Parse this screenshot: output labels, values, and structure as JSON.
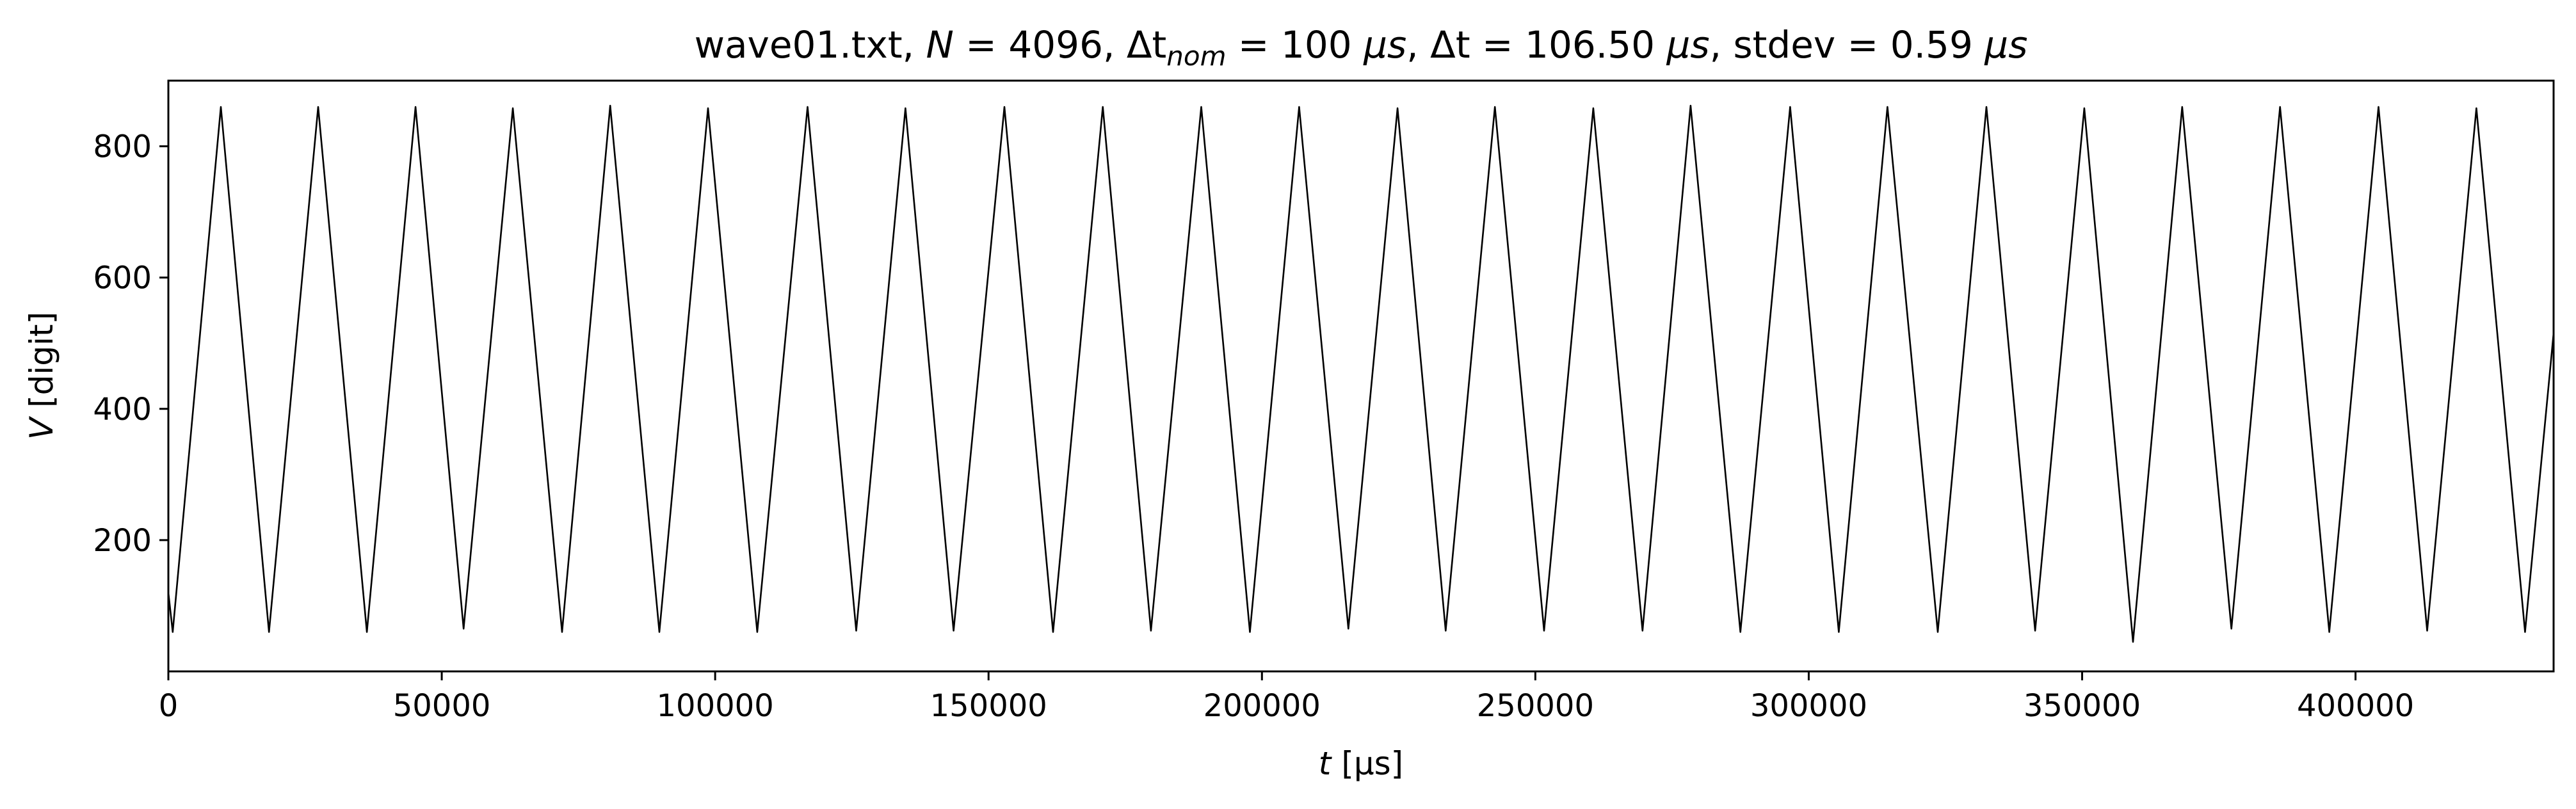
{
  "title": {
    "file": "wave01.txt",
    "N_label": "N",
    "N_value": "4096",
    "dtnom_symbol": "Δt",
    "dtnom_sub": "nom",
    "dtnom_value": "100",
    "dt_symbol": "Δt",
    "dt_value": "106.50",
    "stdev_label": "stdev",
    "stdev_value": "0.59",
    "unit": "μs"
  },
  "colors": {
    "line": "#000000",
    "axes": "#000000",
    "background": "#ffffff"
  },
  "chart_data": {
    "type": "line",
    "title": "wave01.txt, N = 4096, Δt_nom = 100 μs, Δt = 106.50 μs, stdev = 0.59 μs",
    "xlabel_var": "t",
    "xlabel_unit": "[μs]",
    "ylabel_var": "V",
    "ylabel_unit": "[digit]",
    "xlim": [
      0,
      436224
    ],
    "ylim": [
      0,
      900
    ],
    "xticks": [
      0,
      50000,
      100000,
      150000,
      200000,
      250000,
      300000,
      350000,
      400000
    ],
    "xtick_labels": [
      "0",
      "50000",
      "100000",
      "150000",
      "200000",
      "250000",
      "300000",
      "350000",
      "400000"
    ],
    "yticks": [
      200,
      400,
      600,
      800
    ],
    "ytick_labels": [
      "200",
      "400",
      "600",
      "800"
    ],
    "grid": false,
    "series": [
      {
        "x": [
          0,
          800,
          9600,
          18400,
          27400,
          36300,
          45200,
          54000,
          63000,
          72000,
          80800,
          89800,
          98700,
          107700,
          116900,
          125800,
          134800,
          143600,
          152900,
          161800,
          170900,
          179700,
          188900,
          197800,
          206800,
          215800,
          224800,
          233600,
          242600,
          251600,
          260600,
          269600,
          278400,
          287500,
          296600,
          305500,
          314400,
          323600,
          332500,
          341400,
          350400,
          359300,
          368300,
          377300,
          386200,
          395200,
          404200,
          413100,
          422100,
          431000,
          436224
        ],
        "y": [
          120,
          60,
          860,
          60,
          860,
          60,
          860,
          65,
          858,
          60,
          862,
          60,
          858,
          60,
          860,
          62,
          858,
          62,
          860,
          60,
          860,
          62,
          860,
          60,
          860,
          65,
          858,
          62,
          860,
          62,
          858,
          62,
          862,
          60,
          860,
          60,
          860,
          60,
          860,
          62,
          858,
          45,
          860,
          65,
          860,
          60,
          860,
          62,
          858,
          60,
          515
        ]
      }
    ]
  }
}
